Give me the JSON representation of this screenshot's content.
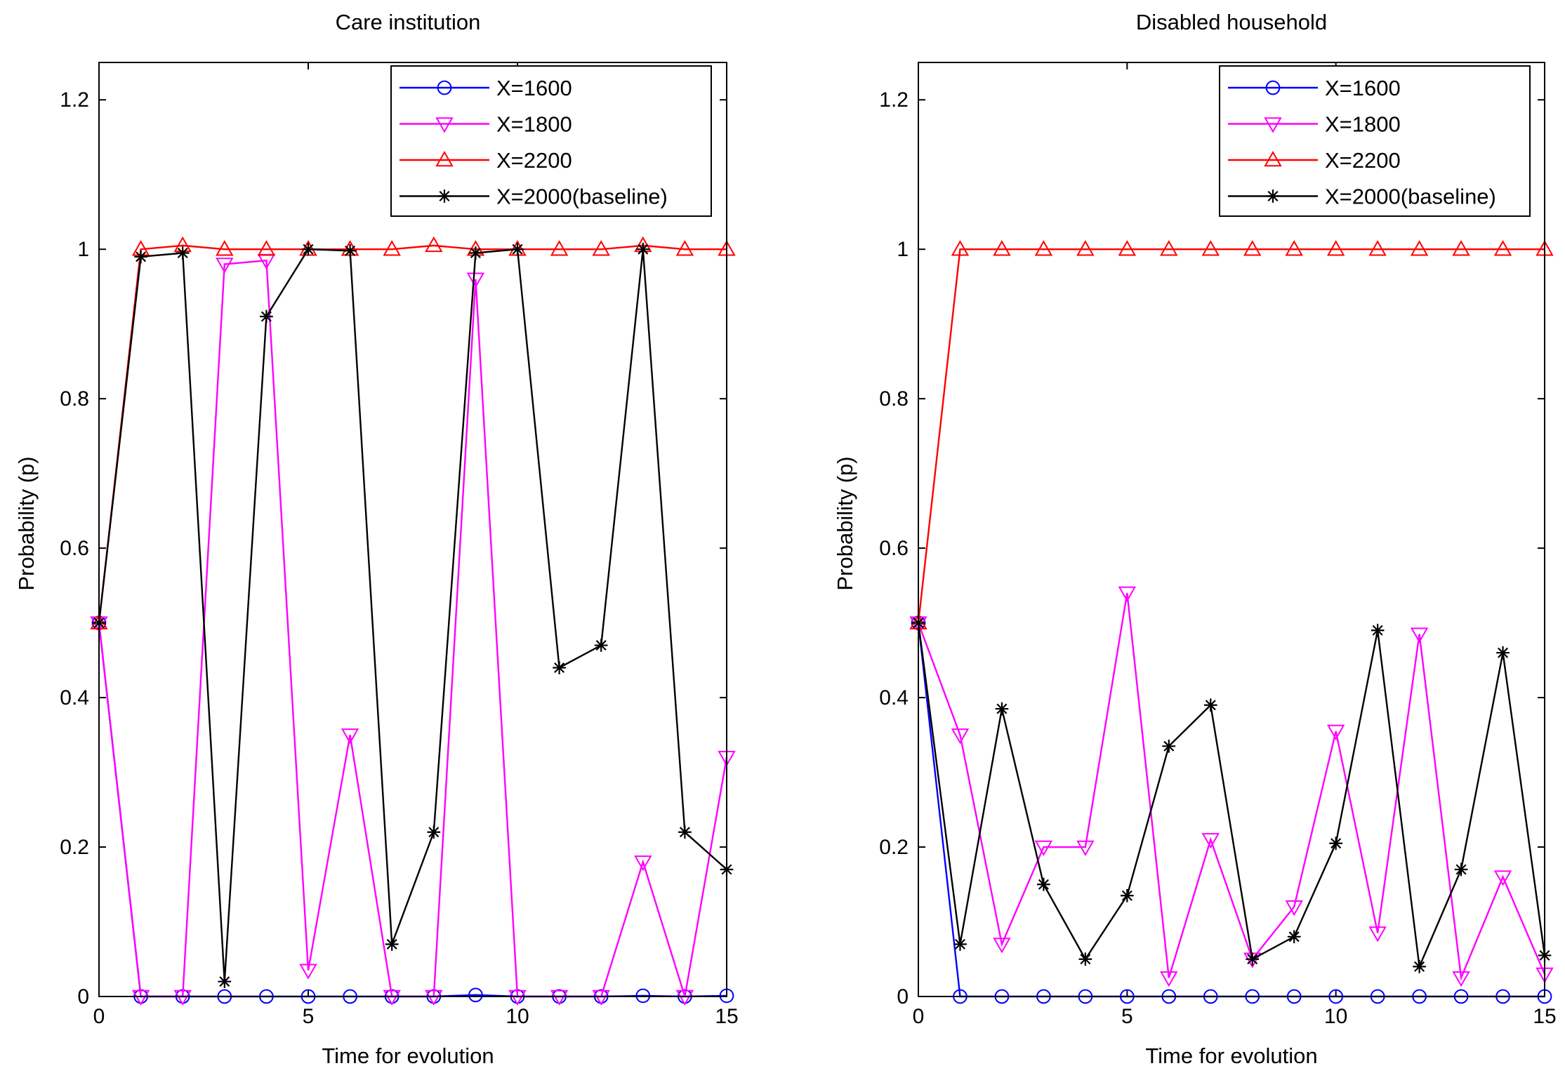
{
  "chart_data": [
    {
      "type": "line",
      "title": "Care institution",
      "xlabel": "Time for evolution",
      "ylabel": "Probability (p)",
      "xlim": [
        0,
        15
      ],
      "ylim": [
        0,
        1.25
      ],
      "xticks": [
        0,
        5,
        10,
        15
      ],
      "yticks": [
        0,
        0.2,
        0.4,
        0.6,
        0.8,
        1,
        1.2
      ],
      "ytick_labels": [
        "0",
        "0.2",
        "0.4",
        "0.6",
        "0.8",
        "1",
        "1.2"
      ],
      "legend_position": "top-right",
      "x": [
        0,
        1,
        2,
        3,
        4,
        5,
        6,
        7,
        8,
        9,
        10,
        11,
        12,
        13,
        14,
        15
      ],
      "series": [
        {
          "name": "X=1600",
          "color": "#0000ff",
          "marker": "circle",
          "values": [
            0.5,
            0.0,
            0.0,
            0.0,
            0.0,
            0.0,
            0.0,
            0.0,
            0.0,
            0.002,
            0.0,
            0.0,
            0.0,
            0.001,
            0.0,
            0.001
          ]
        },
        {
          "name": "X=1800",
          "color": "#ff00ff",
          "marker": "triangle-down",
          "values": [
            0.5,
            0.0,
            0.0,
            0.98,
            0.985,
            0.035,
            0.35,
            0.0,
            0.0,
            0.96,
            0.0,
            0.0,
            0.0,
            0.18,
            0.0,
            0.32
          ]
        },
        {
          "name": "X=2200",
          "color": "#ff0000",
          "marker": "triangle-up",
          "values": [
            0.5,
            1.0,
            1.005,
            1.0,
            1.0,
            1.0,
            1.0,
            1.0,
            1.005,
            1.0,
            1.0,
            1.0,
            1.0,
            1.005,
            1.0,
            1.0
          ]
        },
        {
          "name": "X=2000(baseline)",
          "color": "#000000",
          "marker": "star",
          "values": [
            0.5,
            0.99,
            0.995,
            0.02,
            0.91,
            1.0,
            0.998,
            0.07,
            0.22,
            0.995,
            1.0,
            0.44,
            0.47,
            1.0,
            0.22,
            0.17
          ]
        }
      ]
    },
    {
      "type": "line",
      "title": "Disabled household",
      "xlabel": "Time for evolution",
      "ylabel": "Probability (p)",
      "xlim": [
        0,
        15
      ],
      "ylim": [
        0,
        1.25
      ],
      "xticks": [
        0,
        5,
        10,
        15
      ],
      "yticks": [
        0,
        0.2,
        0.4,
        0.6,
        0.8,
        1,
        1.2
      ],
      "ytick_labels": [
        "0",
        "0.2",
        "0.4",
        "0.6",
        "0.8",
        "1",
        "1.2"
      ],
      "legend_position": "top-right",
      "x": [
        0,
        1,
        2,
        3,
        4,
        5,
        6,
        7,
        8,
        9,
        10,
        11,
        12,
        13,
        14,
        15
      ],
      "series": [
        {
          "name": "X=1600",
          "color": "#0000ff",
          "marker": "circle",
          "values": [
            0.5,
            0.0,
            0.0,
            0.0,
            0.0,
            0.0,
            0.0,
            0.0,
            0.0,
            0.0,
            0.0,
            0.0,
            0.0,
            0.0,
            0.0,
            0.0
          ]
        },
        {
          "name": "X=1800",
          "color": "#ff00ff",
          "marker": "triangle-down",
          "values": [
            0.5,
            0.35,
            0.07,
            0.2,
            0.2,
            0.54,
            0.025,
            0.21,
            0.05,
            0.12,
            0.355,
            0.085,
            0.485,
            0.025,
            0.16,
            0.03
          ]
        },
        {
          "name": "X=2200",
          "color": "#ff0000",
          "marker": "triangle-up",
          "values": [
            0.5,
            1.0,
            1.0,
            1.0,
            1.0,
            1.0,
            1.0,
            1.0,
            1.0,
            1.0,
            1.0,
            1.0,
            1.0,
            1.0,
            1.0,
            1.0
          ]
        },
        {
          "name": "X=2000(baseline)",
          "color": "#000000",
          "marker": "star",
          "values": [
            0.5,
            0.07,
            0.385,
            0.15,
            0.05,
            0.135,
            0.335,
            0.39,
            0.05,
            0.08,
            0.205,
            0.49,
            0.04,
            0.17,
            0.46,
            0.055
          ]
        }
      ]
    }
  ]
}
